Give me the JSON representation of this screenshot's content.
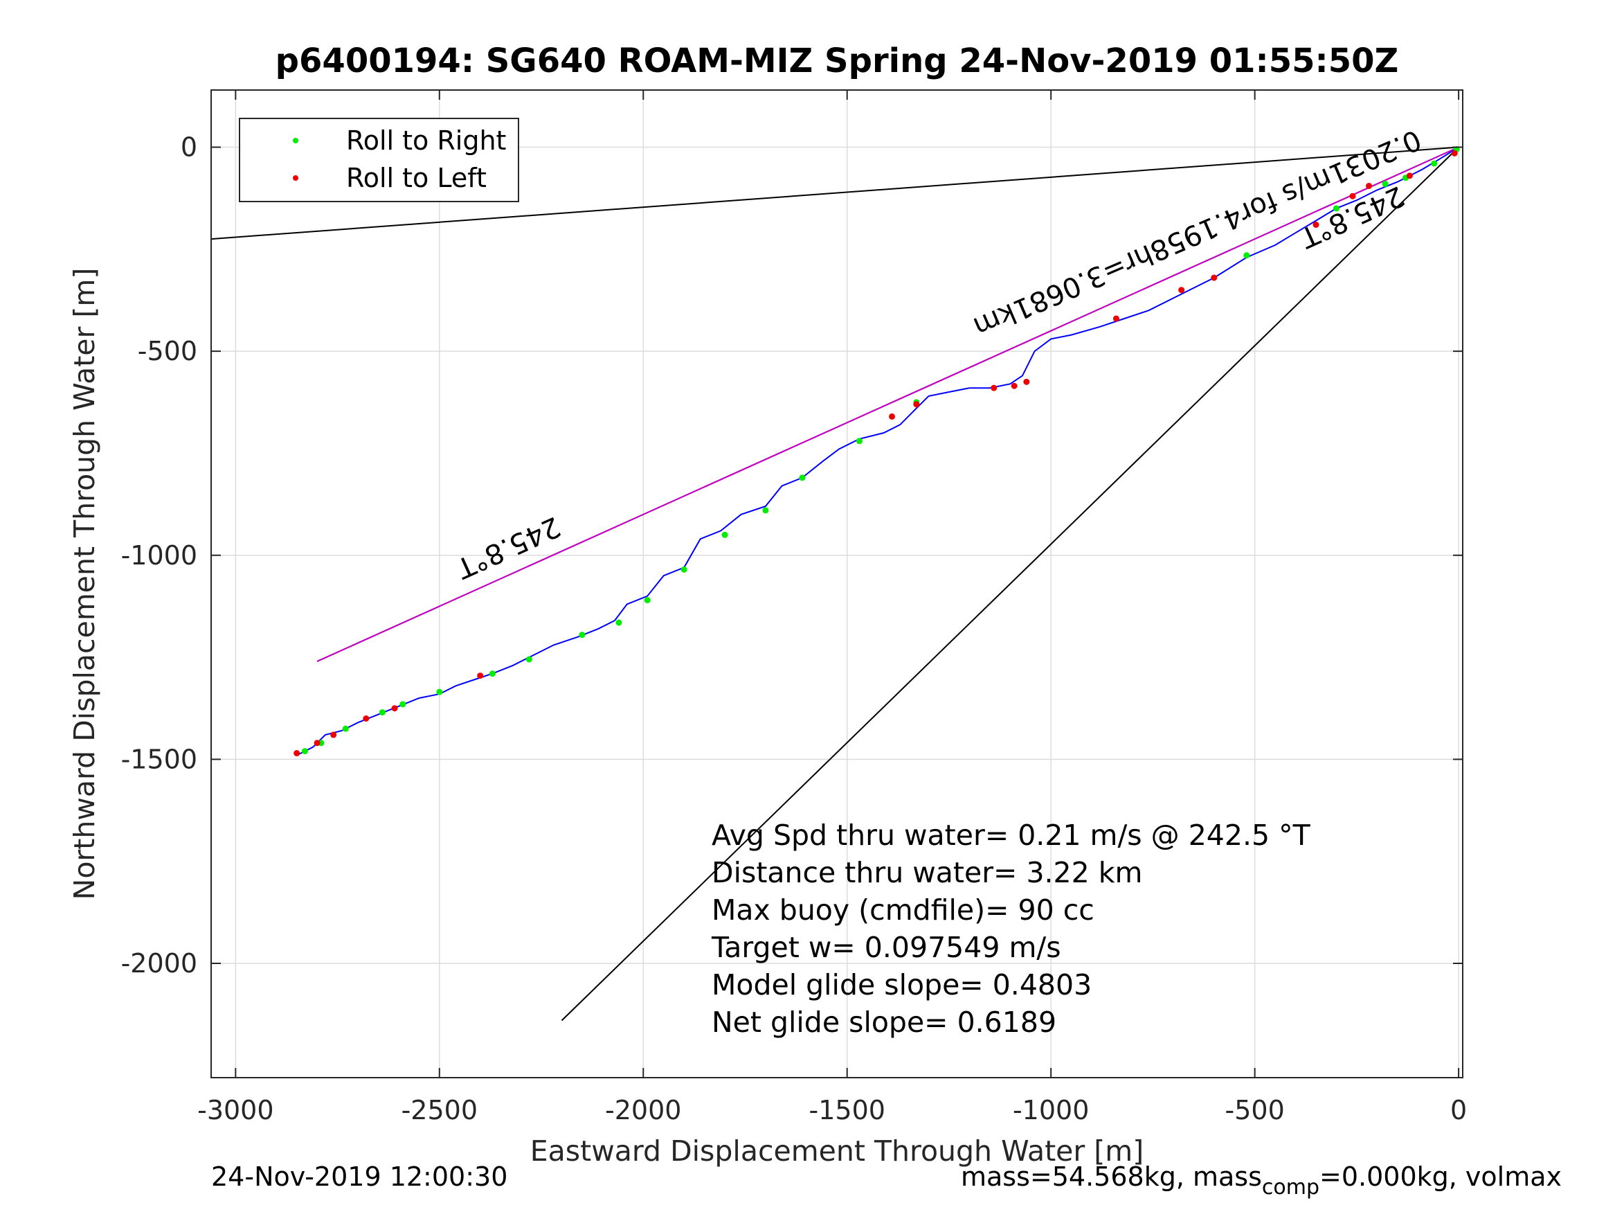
{
  "chart_data": {
    "type": "line",
    "title": "p6400194: SG640 ROAM-MIZ Spring 24-Nov-2019 01:55:50Z",
    "xlabel": "Eastward Displacement Through Water [m]",
    "ylabel": "Northward Displacement Through Water [m]",
    "xlim": [
      -3060,
      10
    ],
    "ylim": [
      -2280,
      140
    ],
    "xticks": [
      -3000,
      -2500,
      -2000,
      -1500,
      -1000,
      -500,
      0
    ],
    "xtick_labels": [
      "-3000",
      "-2500",
      "-2000",
      "-1500",
      "-1000",
      "-500",
      "0"
    ],
    "yticks": [
      0,
      -500,
      -1000,
      -1500,
      -2000
    ],
    "ytick_labels": [
      "0",
      "-500",
      "-1000",
      "-1500",
      "-2000"
    ],
    "grid": true,
    "legend": {
      "position": "top-left",
      "entries": [
        {
          "label": "Roll to Right",
          "color": "#00ee00"
        },
        {
          "label": "Roll to Left",
          "color": "#ee0000"
        }
      ]
    },
    "colors": {
      "track": "#0000ff",
      "heading_line": "#cc00cc",
      "reference_lines": "#000000"
    },
    "reference_lines": [
      {
        "x": [
          0,
          -3060
        ],
        "y": [
          0,
          -225
        ]
      },
      {
        "x": [
          0,
          -2200
        ],
        "y": [
          0,
          -2140
        ]
      },
      {
        "x": [
          0,
          -2800
        ],
        "y": [
          0,
          -1260
        ]
      }
    ],
    "heading_line": {
      "x": [
        0,
        -2800
      ],
      "y": [
        0,
        -1260
      ]
    },
    "track": {
      "x": [
        0,
        -40,
        -90,
        -150,
        -200,
        -250,
        -300,
        -350,
        -400,
        -450,
        -520,
        -600,
        -680,
        -760,
        -820,
        -880,
        -950,
        -1000,
        -1040,
        -1070,
        -1100,
        -1150,
        -1200,
        -1250,
        -1300,
        -1330,
        -1370,
        -1410,
        -1470,
        -1520,
        -1560,
        -1610,
        -1660,
        -1700,
        -1760,
        -1810,
        -1860,
        -1900,
        -1950,
        -1990,
        -2040,
        -2070,
        -2110,
        -2160,
        -2220,
        -2280,
        -2320,
        -2370,
        -2400,
        -2460,
        -2500,
        -2550,
        -2600,
        -2650,
        -2700,
        -2740,
        -2780,
        -2810,
        -2850
      ],
      "y": [
        0,
        -25,
        -55,
        -85,
        -105,
        -130,
        -150,
        -180,
        -210,
        -240,
        -270,
        -320,
        -360,
        -400,
        -420,
        -440,
        -460,
        -470,
        -500,
        -560,
        -580,
        -590,
        -590,
        -600,
        -610,
        -640,
        -680,
        -700,
        -715,
        -740,
        -770,
        -810,
        -830,
        -880,
        -900,
        -940,
        -960,
        -1030,
        -1050,
        -1100,
        -1120,
        -1160,
        -1180,
        -1200,
        -1220,
        -1250,
        -1270,
        -1290,
        -1300,
        -1320,
        -1340,
        -1350,
        -1370,
        -1390,
        -1410,
        -1430,
        -1440,
        -1470,
        -1490
      ]
    },
    "roll_right_points": {
      "x": [
        -5,
        -60,
        -130,
        -180,
        -300,
        -520,
        -1330,
        -1470,
        -1610,
        -1700,
        -1800,
        -1900,
        -1990,
        -2060,
        -2150,
        -2280,
        -2370,
        -2500,
        -2590,
        -2640,
        -2730,
        -2790,
        -2830
      ],
      "y": [
        -5,
        -40,
        -75,
        -90,
        -150,
        -265,
        -625,
        -720,
        -810,
        -890,
        -950,
        -1035,
        -1110,
        -1165,
        -1195,
        -1255,
        -1290,
        -1335,
        -1365,
        -1385,
        -1425,
        -1460,
        -1480
      ]
    },
    "roll_left_points": {
      "x": [
        -10,
        -120,
        -220,
        -260,
        -350,
        -600,
        -680,
        -840,
        -1060,
        -1090,
        -1140,
        -1330,
        -1390,
        -2400,
        -2610,
        -2680,
        -2760,
        -2800,
        -2850
      ],
      "y": [
        -15,
        -70,
        -95,
        -120,
        -190,
        -320,
        -350,
        -420,
        -575,
        -585,
        -590,
        -630,
        -660,
        -1295,
        -1375,
        -1400,
        -1440,
        -1460,
        -1485
      ]
    },
    "annotations": [
      {
        "text": "245.8°T",
        "x": -2340,
        "y": -960,
        "rotation": 155.8
      },
      {
        "text": "245.8°T",
        "x": -270,
        "y": -150,
        "rotation": 155.8
      },
      {
        "text": "0.2031m/s for4.1958hr=3.0681km",
        "x": -650,
        "y": -190,
        "rotation": 156.8
      }
    ],
    "stats": [
      "Avg Spd thru water=  0.21 m/s @ 242.5 °T",
      "Distance thru water=  3.22 km",
      "Max buoy (cmdfile)= 90 cc",
      "Target w= 0.097549 m/s",
      "Model glide slope= 0.4803",
      "Net glide slope= 0.6189"
    ]
  },
  "footer": {
    "left": "24-Nov-2019 12:00:30",
    "right_prefix": "mass=54.568kg, mass",
    "right_sub": "comp",
    "right_suffix": "=0.000kg, volmax"
  }
}
